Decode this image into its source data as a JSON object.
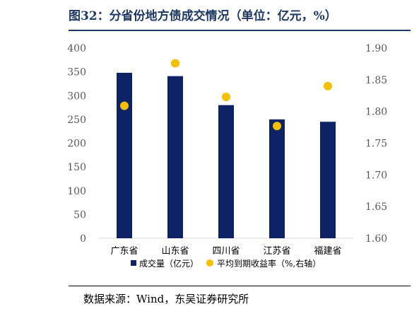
{
  "page": {
    "title": "图32：分省份地方债成交情况（单位：亿元，%）",
    "source": "数据来源：Wind，东吴证券研究所"
  },
  "colors": {
    "title": "#1f3864",
    "bar": "#0e2366",
    "dot": "#f5c000",
    "axis_text": "#595959",
    "axis_line": "#d9d9d9"
  },
  "chart_data": {
    "type": "bar",
    "categories": [
      "广东省",
      "山东省",
      "四川省",
      "江苏省",
      "福建省"
    ],
    "series": [
      {
        "name": "成交量（亿元）",
        "axis": "left",
        "type": "bar",
        "values": [
          348,
          341,
          280,
          250,
          245
        ]
      },
      {
        "name": "平均到期收益率（%,右轴）",
        "axis": "right",
        "type": "scatter",
        "values": [
          1.809,
          1.876,
          1.823,
          1.777,
          1.84
        ]
      }
    ],
    "y_left": {
      "min": 0,
      "max": 400,
      "ticks": [
        "0",
        "50",
        "100",
        "150",
        "200",
        "250",
        "300",
        "350",
        "400"
      ]
    },
    "y_right": {
      "min": 1.6,
      "max": 1.9,
      "ticks": [
        "1.60",
        "1.65",
        "1.70",
        "1.75",
        "1.80",
        "1.85",
        "1.90"
      ]
    },
    "grid": false,
    "legend": "bottom"
  }
}
